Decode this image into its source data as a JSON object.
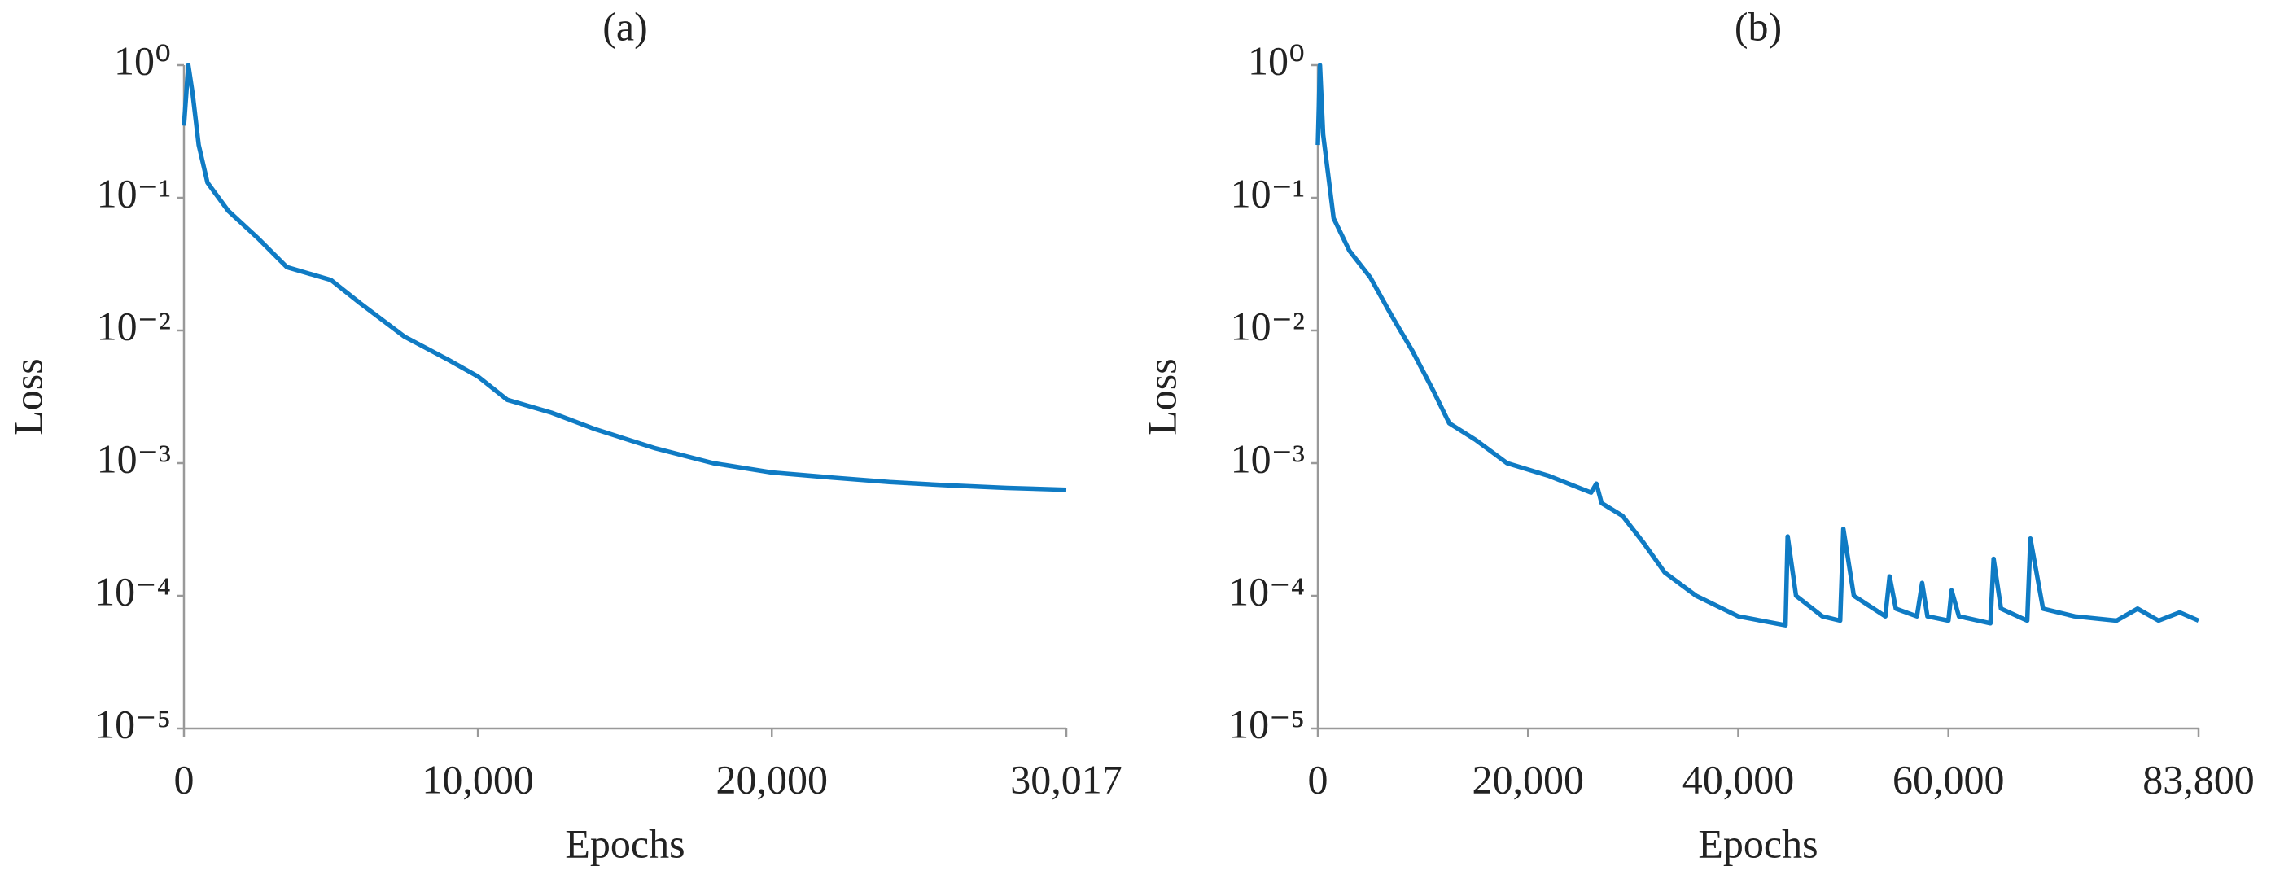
{
  "chart_data": [
    {
      "type": "line",
      "title": "(a)",
      "x_label": "Epochs",
      "y_label": "Loss",
      "color": "#0f7bc4",
      "log_y": true,
      "x": [
        0,
        150,
        300,
        500,
        800,
        1500,
        2500,
        3500,
        5000,
        6000,
        7500,
        9000,
        10000,
        11000,
        12500,
        14000,
        16000,
        18000,
        20000,
        22000,
        24000,
        26000,
        28000,
        30017
      ],
      "values": [
        0.35,
        1.0,
        0.6,
        0.25,
        0.13,
        0.08,
        0.05,
        0.03,
        0.024,
        0.016,
        0.009,
        0.006,
        0.0045,
        0.003,
        0.0024,
        0.0018,
        0.0013,
        0.001,
        0.00085,
        0.00078,
        0.00072,
        0.00068,
        0.00065,
        0.00063
      ],
      "xlim": [
        0,
        30017
      ],
      "xticks": [
        0,
        {
          "value": 10000,
          "label": "10,000"
        },
        {
          "value": 20000,
          "label": "20,000"
        },
        {
          "value": 30017,
          "label": "30,017"
        }
      ],
      "ylim": [
        1e-05,
        1
      ],
      "yticks": [
        {
          "value": 1,
          "label": "10⁰"
        },
        {
          "value": 0.1,
          "label": "10⁻¹"
        },
        {
          "value": 0.01,
          "label": "10⁻²"
        },
        {
          "value": 0.001,
          "label": "10⁻³"
        },
        {
          "value": 0.0001,
          "label": "10⁻⁴"
        },
        {
          "value": 1e-05,
          "label": "10⁻⁵"
        }
      ]
    },
    {
      "type": "line",
      "title": "(b)",
      "x_label": "Epochs",
      "y_label": "Loss",
      "color": "#0f7bc4",
      "log_y": true,
      "x": [
        0,
        200,
        500,
        1500,
        3000,
        5000,
        7000,
        9000,
        11000,
        12500,
        15000,
        18000,
        22000,
        26000,
        26500,
        27000,
        29000,
        31000,
        33000,
        36000,
        40000,
        44500,
        44700,
        45500,
        48000,
        49700,
        50000,
        51000,
        54000,
        54400,
        55000,
        57000,
        57500,
        58000,
        60000,
        60300,
        61000,
        64000,
        64300,
        65000,
        67500,
        67800,
        69000,
        72000,
        76000,
        78000,
        80000,
        82000,
        83800
      ],
      "values": [
        0.25,
        1.0,
        0.3,
        0.07,
        0.04,
        0.025,
        0.013,
        0.007,
        0.0035,
        0.002,
        0.0015,
        0.001,
        0.0008,
        0.0006,
        0.0007,
        0.0005,
        0.0004,
        0.00025,
        0.00015,
        0.0001,
        7e-05,
        6e-05,
        0.00028,
        0.0001,
        7e-05,
        6.5e-05,
        0.00032,
        0.0001,
        7e-05,
        0.00014,
        8e-05,
        7e-05,
        0.000125,
        7e-05,
        6.5e-05,
        0.00011,
        7e-05,
        6.2e-05,
        0.00019,
        8e-05,
        6.5e-05,
        0.00027,
        8e-05,
        7e-05,
        6.5e-05,
        8e-05,
        6.5e-05,
        7.5e-05,
        6.5e-05
      ],
      "xlim": [
        0,
        83800
      ],
      "xticks": [
        0,
        {
          "value": 20000,
          "label": "20,000"
        },
        {
          "value": 40000,
          "label": "40,000"
        },
        {
          "value": 60000,
          "label": "60,000"
        },
        {
          "value": 83800,
          "label": "83,800"
        }
      ],
      "ylim": [
        1e-05,
        1
      ],
      "yticks": [
        {
          "value": 1,
          "label": "10⁰"
        },
        {
          "value": 0.1,
          "label": "10⁻¹"
        },
        {
          "value": 0.01,
          "label": "10⁻²"
        },
        {
          "value": 0.001,
          "label": "10⁻³"
        },
        {
          "value": 0.0001,
          "label": "10⁻⁴"
        },
        {
          "value": 1e-05,
          "label": "10⁻⁵"
        }
      ]
    }
  ]
}
